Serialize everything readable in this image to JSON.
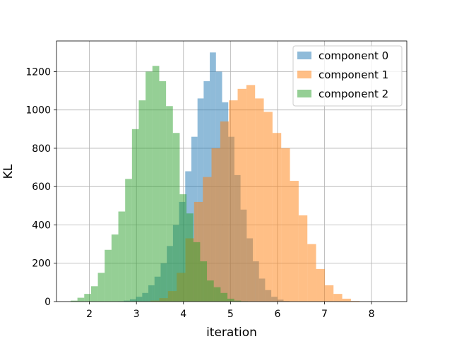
{
  "chart_data": {
    "type": "histogram",
    "title": "",
    "xlabel": "iteration",
    "ylabel": "KL",
    "xlim": [
      1.3,
      8.75
    ],
    "ylim": [
      0,
      1360
    ],
    "xticks": [
      2,
      3,
      4,
      5,
      6,
      7,
      8
    ],
    "yticks": [
      0,
      200,
      400,
      600,
      800,
      1000,
      1200
    ],
    "grid": true,
    "legend_position": "top-right",
    "opacity": 0.5,
    "series": [
      {
        "name": "component 0",
        "color": "#1f77b4",
        "bin_start": 2.6,
        "bin_width": 0.1307,
        "counts": [
          2,
          5,
          12,
          25,
          45,
          85,
          130,
          200,
          290,
          400,
          520,
          680,
          860,
          1060,
          1150,
          1300,
          1200,
          1040,
          860,
          660,
          480,
          330,
          210,
          120,
          60,
          25,
          10,
          3
        ]
      },
      {
        "name": "component 1",
        "color": "#ff7f0e",
        "bin_start": 3.3,
        "bin_width": 0.1853,
        "counts": [
          5,
          18,
          55,
          150,
          330,
          520,
          650,
          800,
          940,
          1050,
          1110,
          1130,
          1060,
          990,
          880,
          800,
          630,
          450,
          300,
          170,
          85,
          40,
          15,
          3
        ]
      },
      {
        "name": "component 2",
        "color": "#2ca02c",
        "bin_start": 1.6,
        "bin_width": 0.145,
        "counts": [
          5,
          20,
          40,
          80,
          150,
          270,
          350,
          470,
          640,
          900,
          1050,
          1200,
          1230,
          1150,
          1020,
          880,
          560,
          460,
          310,
          210,
          110,
          75,
          45,
          15,
          5,
          2
        ]
      }
    ]
  }
}
